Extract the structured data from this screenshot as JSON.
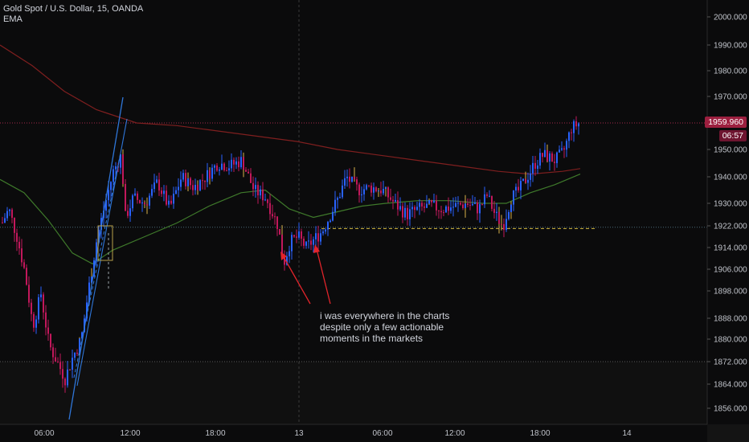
{
  "header": {
    "symbol_line": "Gold Spot / U.S. Dollar, 15, OANDA",
    "indicator": "EMA"
  },
  "annotation": {
    "lines": [
      "i was everywhere in the charts",
      "despite only a few actionable",
      "moments in the markets"
    ]
  },
  "current_price": {
    "label": "1959.960",
    "countdown": "06:57"
  },
  "colors": {
    "background": "#0b0b0c",
    "bull": "#2962ff",
    "bear": "#c2185b",
    "ema_fast": "#3f7a2b",
    "ema_slow": "#7f1f1f",
    "trendline": "#2f76d8",
    "annotation_arrow": "#e3242b",
    "support_line": "#d4b93f",
    "price_tag": "#9c1f3f"
  },
  "chart_data": {
    "type": "candlestick",
    "symbol": "XAUUSD",
    "timeframe": "15",
    "y_ticks": [
      "2000.000",
      "1990.000",
      "1980.000",
      "1970.000",
      "1950.000",
      "1940.000",
      "1930.000",
      "1922.000",
      "1914.000",
      "1906.000",
      "1898.000",
      "1888.000",
      "1880.000",
      "1872.000",
      "1864.000",
      "1856.000"
    ],
    "y_tick_values": [
      2000,
      1990,
      1980,
      1970,
      1950,
      1940,
      1930,
      1922,
      1914,
      1906,
      1898,
      1888,
      1880,
      1872,
      1864,
      1856
    ],
    "ylim": [
      1853,
      2003
    ],
    "x_ticks": [
      "06:00",
      "12:00",
      "18:00",
      "13",
      "06:00",
      "12:00",
      "18:00",
      "14"
    ],
    "support_level": 1921,
    "horizontal_levels": [
      1960,
      1921,
      1872
    ],
    "price_path": [
      [
        0,
        1922
      ],
      [
        10,
        1928
      ],
      [
        20,
        1918
      ],
      [
        30,
        1905
      ],
      [
        40,
        1885
      ],
      [
        50,
        1897
      ],
      [
        60,
        1878
      ],
      [
        70,
        1872
      ],
      [
        80,
        1866
      ],
      [
        90,
        1874
      ],
      [
        100,
        1880
      ],
      [
        110,
        1900
      ],
      [
        120,
        1918
      ],
      [
        130,
        1930
      ],
      [
        140,
        1942
      ],
      [
        150,
        1948
      ],
      [
        155,
        1925
      ],
      [
        165,
        1932
      ],
      [
        180,
        1930
      ],
      [
        195,
        1938
      ],
      [
        210,
        1928
      ],
      [
        225,
        1940
      ],
      [
        240,
        1936
      ],
      [
        255,
        1940
      ],
      [
        270,
        1945
      ],
      [
        285,
        1944
      ],
      [
        300,
        1946
      ],
      [
        315,
        1935
      ],
      [
        330,
        1932
      ],
      [
        345,
        1922
      ],
      [
        352,
        1908
      ],
      [
        360,
        1916
      ],
      [
        370,
        1918
      ],
      [
        380,
        1914
      ],
      [
        390,
        1917
      ],
      [
        400,
        1920
      ],
      [
        410,
        1926
      ],
      [
        420,
        1932
      ],
      [
        430,
        1940
      ],
      [
        445,
        1935
      ],
      [
        460,
        1936
      ],
      [
        475,
        1935
      ],
      [
        490,
        1930
      ],
      [
        505,
        1926
      ],
      [
        520,
        1928
      ],
      [
        535,
        1929
      ],
      [
        550,
        1928
      ],
      [
        565,
        1929
      ],
      [
        580,
        1930
      ],
      [
        595,
        1928
      ],
      [
        605,
        1933
      ],
      [
        615,
        1926
      ],
      [
        625,
        1922
      ],
      [
        635,
        1932
      ],
      [
        645,
        1935
      ],
      [
        655,
        1940
      ],
      [
        665,
        1945
      ],
      [
        675,
        1948
      ],
      [
        690,
        1946
      ],
      [
        700,
        1949
      ],
      [
        710,
        1958
      ],
      [
        720,
        1960
      ]
    ],
    "ema_fast": [
      [
        0,
        1939
      ],
      [
        30,
        1934
      ],
      [
        60,
        1924
      ],
      [
        90,
        1912
      ],
      [
        115,
        1908
      ],
      [
        140,
        1913
      ],
      [
        180,
        1918
      ],
      [
        220,
        1923
      ],
      [
        260,
        1929
      ],
      [
        300,
        1934
      ],
      [
        330,
        1935
      ],
      [
        360,
        1928
      ],
      [
        390,
        1925
      ],
      [
        420,
        1927
      ],
      [
        450,
        1929
      ],
      [
        480,
        1930
      ],
      [
        520,
        1931
      ],
      [
        560,
        1931
      ],
      [
        600,
        1930
      ],
      [
        630,
        1930
      ],
      [
        660,
        1934
      ],
      [
        690,
        1937
      ],
      [
        722,
        1941
      ]
    ],
    "ema_slow": [
      [
        0,
        1990
      ],
      [
        40,
        1982
      ],
      [
        80,
        1972
      ],
      [
        120,
        1965
      ],
      [
        170,
        1960
      ],
      [
        220,
        1959
      ],
      [
        270,
        1957
      ],
      [
        320,
        1955
      ],
      [
        370,
        1953
      ],
      [
        420,
        1950
      ],
      [
        470,
        1948
      ],
      [
        520,
        1946
      ],
      [
        570,
        1944
      ],
      [
        620,
        1942
      ],
      [
        660,
        1941
      ],
      [
        700,
        1942
      ],
      [
        722,
        1943
      ]
    ]
  }
}
